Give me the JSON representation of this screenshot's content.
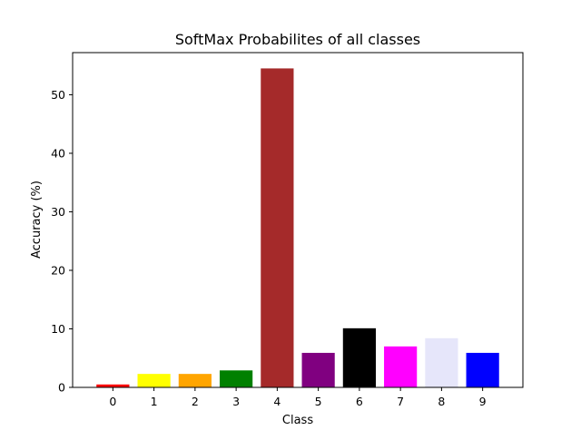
{
  "chart_data": {
    "type": "bar",
    "title": "SoftMax Probabilites of all classes",
    "xlabel": "Class",
    "ylabel": "Accuracy (%)",
    "categories": [
      "0",
      "1",
      "2",
      "3",
      "4",
      "5",
      "6",
      "7",
      "8",
      "9"
    ],
    "values": [
      0.5,
      2.3,
      2.3,
      2.9,
      54.5,
      5.9,
      10.1,
      7.0,
      8.4,
      5.9
    ],
    "colors": [
      "#ff0000",
      "#ffff00",
      "#ffa500",
      "#008000",
      "#a52a2a",
      "#800080",
      "#000000",
      "#ff00ff",
      "#e6e6fa",
      "#0000ff"
    ],
    "yticks": [
      0,
      10,
      20,
      30,
      40,
      50
    ],
    "ylim": [
      0,
      57.2
    ],
    "xlim": [
      -0.98,
      9.98
    ],
    "grid": false,
    "legend": "none"
  }
}
